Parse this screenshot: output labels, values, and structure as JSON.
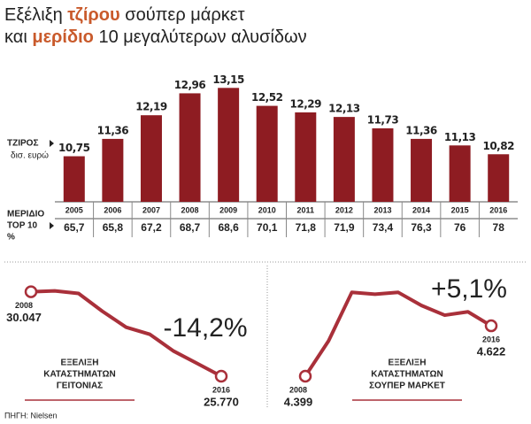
{
  "title": {
    "lines": [
      [
        {
          "text": "Εξέλιξη "
        },
        {
          "text": "τζίρου",
          "accent": true
        },
        {
          "text": " σούπερ μάρκετ"
        }
      ],
      [
        {
          "text": "και "
        },
        {
          "text": "μερίδιο",
          "accent": true
        },
        {
          "text": " 10 μεγαλύτερων αλυσίδων"
        }
      ]
    ],
    "accent_color": "#c95a2b"
  },
  "chart_data": [
    {
      "type": "bar",
      "label": "ΤΖΙΡΟΣ",
      "unit": "δισ. ευρώ",
      "color": "#8e1c22",
      "categories": [
        "2005",
        "2006",
        "2007",
        "2008",
        "2009",
        "2010",
        "2011",
        "2012",
        "2013",
        "2014",
        "2015",
        "2016"
      ],
      "values": [
        10.75,
        11.36,
        12.19,
        12.96,
        13.15,
        12.52,
        12.29,
        12.13,
        11.73,
        11.36,
        11.13,
        10.82
      ],
      "value_labels": [
        "10,75",
        "11,36",
        "12,19",
        "12,96",
        "13,15",
        "12,52",
        "12,29",
        "12,13",
        "11,73",
        "11,36",
        "11,13",
        "10,82"
      ],
      "ylim": [
        9.15,
        13.75
      ],
      "share": {
        "label_lines": [
          "ΜΕΡΙΔΙΟ",
          "TOP 10",
          "%"
        ],
        "values": [
          65.7,
          65.8,
          67.2,
          68.7,
          68.6,
          70.1,
          71.8,
          71.9,
          73.4,
          76.3,
          76,
          78
        ],
        "value_labels": [
          "65,7",
          "65,8",
          "67,2",
          "68,7",
          "68,6",
          "70,1",
          "71,8",
          "71,9",
          "73,4",
          "76,3",
          "76",
          "78"
        ]
      }
    },
    {
      "type": "line",
      "color": "#a9303a",
      "change_label": "-14,2%",
      "change_color": "#c95a2b",
      "label_lines": [
        "ΕΞΕΛΙΞΗ",
        "ΚΑΤΑΣΤΗΜΑΤΩΝ",
        "ΓΕΙΤΟΝΙΑΣ"
      ],
      "x": [
        2008,
        2009,
        2010,
        2011,
        2012,
        2013,
        2014,
        2015,
        2016
      ],
      "values": [
        30047,
        30090,
        29960,
        29060,
        28250,
        27890,
        27040,
        26410,
        25770
      ],
      "value_labels": [
        "30.047",
        null,
        null,
        null,
        null,
        null,
        null,
        null,
        "25.770"
      ],
      "xlim": [
        2008,
        2016
      ],
      "ylim": [
        25100,
        30700
      ]
    },
    {
      "type": "line",
      "color": "#a9303a",
      "change_label": "+5,1%",
      "change_color": "#c95a2b",
      "label_lines": [
        "ΕΞΕΛΙΞΗ",
        "ΚΑΤΑΣΤΗΜΑΤΩΝ",
        "ΣΟΥΠΕΡ ΜΑΡΚΕΤ"
      ],
      "x": [
        2008,
        2009,
        2010,
        2011,
        2012,
        2013,
        2014,
        2015,
        2016
      ],
      "values": [
        4399,
        4555,
        4770,
        4762,
        4770,
        4712,
        4669,
        4684,
        4622
      ],
      "value_labels": [
        "4.399",
        null,
        null,
        null,
        null,
        null,
        null,
        null,
        "4.622"
      ],
      "xlim": [
        2008,
        2016
      ],
      "ylim": [
        4340,
        4830
      ]
    }
  ],
  "source": "ΠΗΓΗ: Nielsen"
}
